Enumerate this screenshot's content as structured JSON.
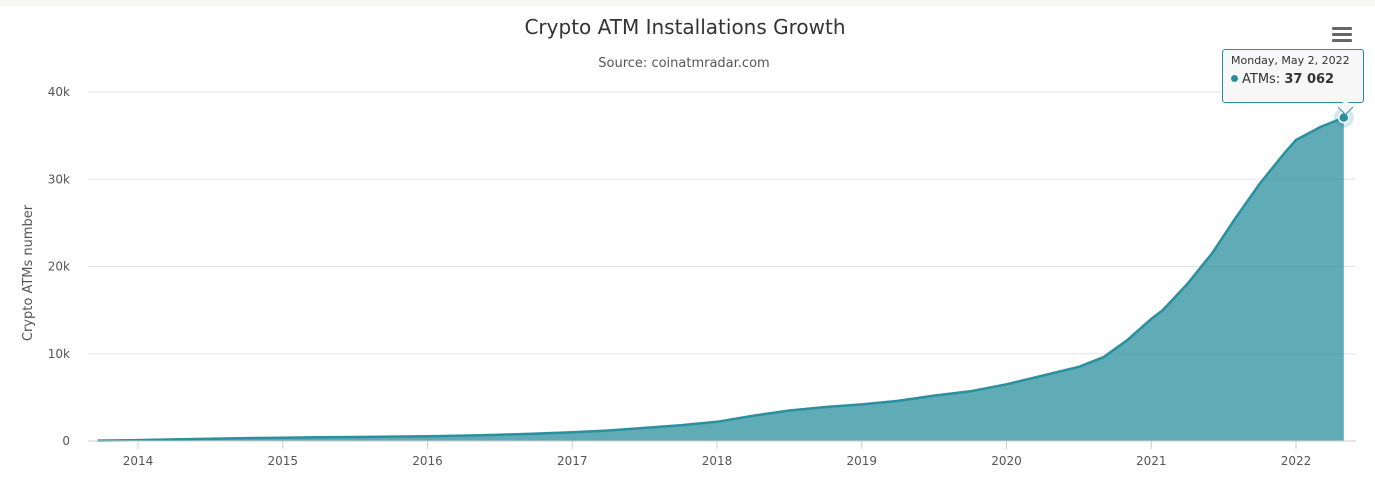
{
  "chart_data": {
    "type": "area",
    "title": "Crypto ATM Installations Growth",
    "subtitle": "Source: coinatmradar.com",
    "xlabel": "",
    "ylabel": "Crypto ATMs number",
    "xlim": [
      2013.72,
      2022.33
    ],
    "ylim": [
      0,
      40000
    ],
    "x_ticks": [
      {
        "label": "2014",
        "value": 2014
      },
      {
        "label": "2015",
        "value": 2015
      },
      {
        "label": "2016",
        "value": 2016
      },
      {
        "label": "2017",
        "value": 2017
      },
      {
        "label": "2018",
        "value": 2018
      },
      {
        "label": "2019",
        "value": 2019
      },
      {
        "label": "2020",
        "value": 2020
      },
      {
        "label": "2021",
        "value": 2021
      },
      {
        "label": "2022",
        "value": 2022
      }
    ],
    "y_ticks": [
      {
        "label": "0",
        "value": 0
      },
      {
        "label": "10k",
        "value": 10000
      },
      {
        "label": "20k",
        "value": 20000
      },
      {
        "label": "30k",
        "value": 30000
      },
      {
        "label": "40k",
        "value": 40000
      }
    ],
    "grid": true,
    "legend": "none",
    "color": "#2a8f9e",
    "series": [
      {
        "x": [
          2013.72,
          2014.0,
          2014.25,
          2014.5,
          2014.75,
          2015.0,
          2015.25,
          2015.5,
          2015.75,
          2016.0,
          2016.25,
          2016.5,
          2016.75,
          2017.0,
          2017.25,
          2017.5,
          2017.75,
          2018.0,
          2018.25,
          2018.5,
          2018.75,
          2019.0,
          2019.25,
          2019.5,
          2019.75,
          2020.0,
          2020.25,
          2020.5,
          2020.67,
          2020.83,
          2021.0,
          2021.08,
          2021.25,
          2021.42,
          2021.58,
          2021.75,
          2021.92,
          2022.0,
          2022.17,
          2022.33
        ],
        "values": [
          50,
          100,
          180,
          250,
          330,
          380,
          420,
          460,
          500,
          540,
          620,
          720,
          850,
          1000,
          1200,
          1500,
          1800,
          2200,
          2900,
          3500,
          3900,
          4200,
          4600,
          5200,
          5700,
          6500,
          7500,
          8500,
          9600,
          11500,
          14000,
          15000,
          18000,
          21500,
          25500,
          29500,
          33000,
          34500,
          36000,
          37062
        ]
      }
    ],
    "tooltip": {
      "date": "Monday, May 2, 2022",
      "label": "ATMs",
      "value": "37 062",
      "x": 2022.33,
      "y": 37062
    }
  },
  "menu": {
    "icon": "hamburger-menu-icon"
  }
}
